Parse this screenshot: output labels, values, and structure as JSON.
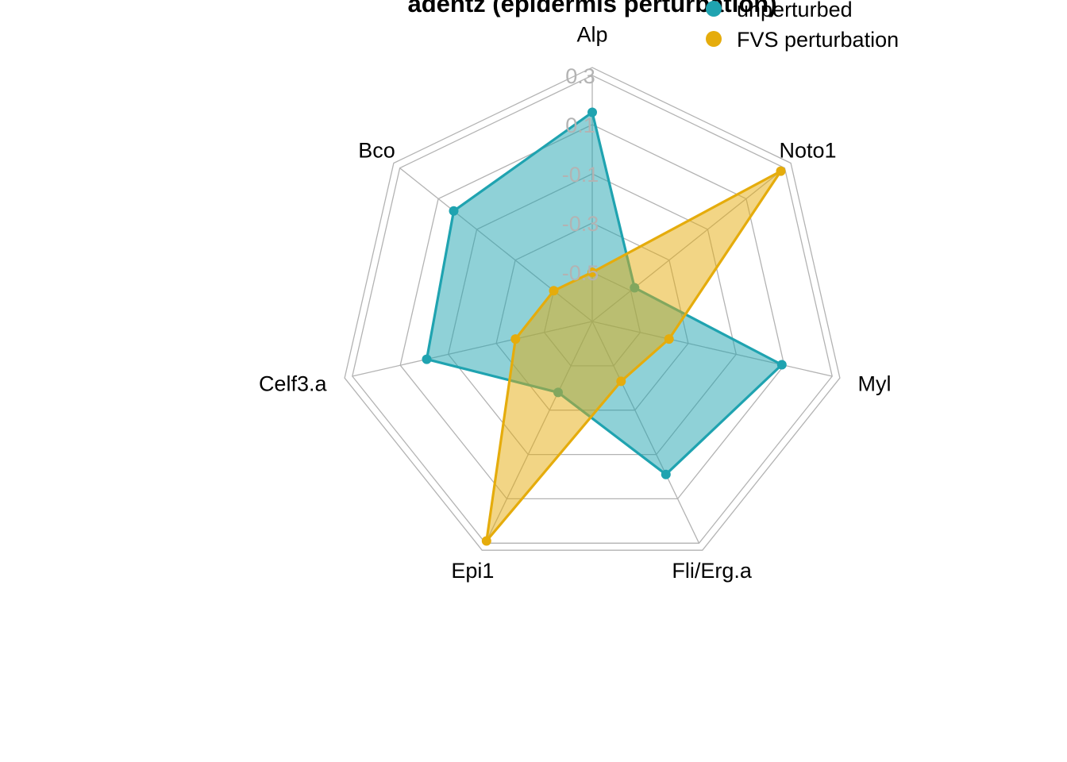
{
  "chart_data": {
    "type": "radar",
    "title": "adentz (epidermis perturbation)",
    "axes": [
      "Alp",
      "Noto1",
      "Myl",
      "Fli/Erg.a",
      "Epi1",
      "Celf3.a",
      "Bco"
    ],
    "ticks": [
      "0.3",
      "0.1",
      "-0.1",
      "-0.3",
      "-0.5"
    ],
    "rlim": [
      -0.7,
      0.3
    ],
    "grid": true,
    "legend_position": "top-right",
    "series": [
      {
        "name": "unperturbed",
        "color": "#1fa3b0",
        "values": [
          0.15,
          -0.48,
          0.09,
          -0.01,
          -0.38,
          -0.01,
          0.02
        ]
      },
      {
        "name": "FVS perturbation",
        "color": "#e5ac0c",
        "values": [
          -0.5,
          0.28,
          -0.38,
          -0.43,
          0.29,
          -0.38,
          -0.5
        ]
      }
    ]
  }
}
